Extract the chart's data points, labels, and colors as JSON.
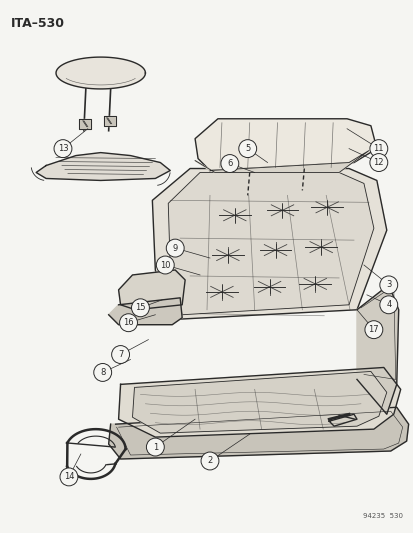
{
  "title": "ITA–530",
  "footer": "94235  530",
  "bg": "#f5f5f2",
  "lc": "#2a2a2a",
  "lc_light": "#666666",
  "figsize": [
    4.14,
    5.33
  ],
  "dpi": 100
}
